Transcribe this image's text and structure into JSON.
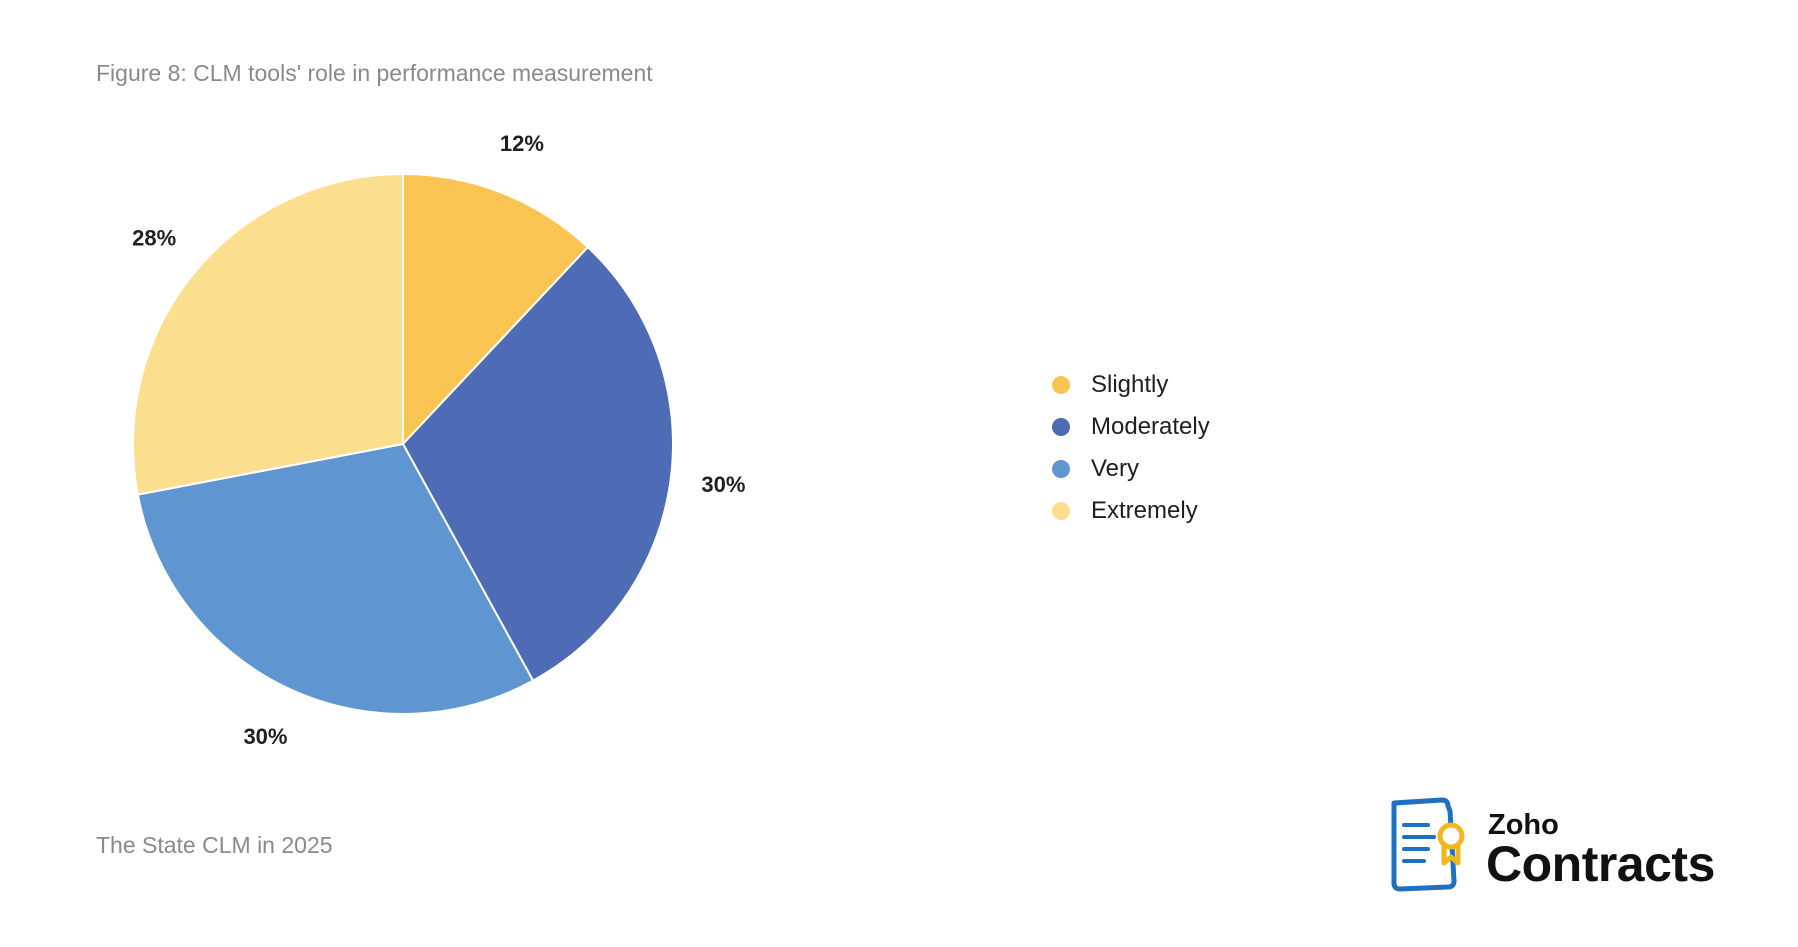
{
  "figure_title": "Figure 8: CLM tools' role in performance measurement",
  "source": "The State CLM in 2025",
  "logo": {
    "brand": "Zoho",
    "product": "Contracts",
    "icon": "contract-document-icon"
  },
  "chart_data": {
    "type": "pie",
    "title": "Figure 8: CLM tools' role in performance measurement",
    "categories": [
      "Slightly",
      "Moderately",
      "Very",
      "Extremely"
    ],
    "values": [
      12,
      30,
      30,
      28
    ],
    "value_labels": [
      "12%",
      "30%",
      "30%",
      "28%"
    ],
    "colors": [
      "#F9C451",
      "#4E6CB5",
      "#5F96D1",
      "#FBDE8E"
    ],
    "start_angle": "12 o'clock",
    "direction": "clockwise",
    "legend_placement": "right"
  },
  "legend": [
    {
      "label": "Slightly",
      "color": "#F9C451"
    },
    {
      "label": "Moderately",
      "color": "#4E6CB5"
    },
    {
      "label": "Very",
      "color": "#5F96D1"
    },
    {
      "label": "Extremely",
      "color": "#FBDE8E"
    }
  ]
}
